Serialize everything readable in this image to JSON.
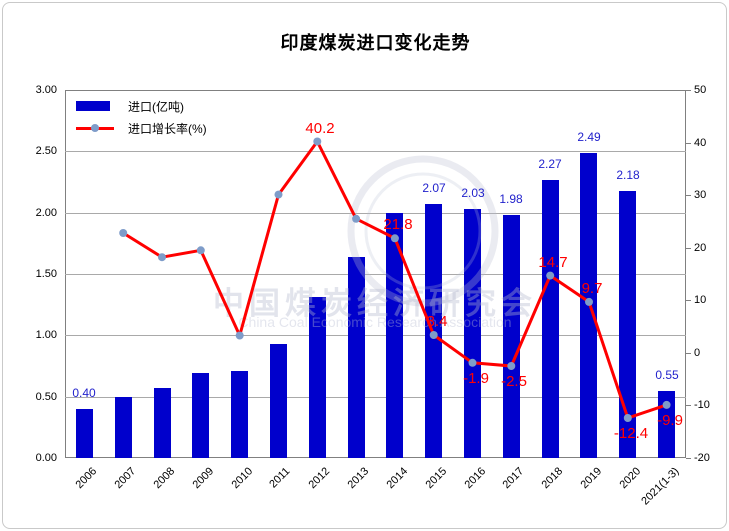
{
  "title": "印度煤炭进口变化走势",
  "legend": {
    "bar_label": "进口(亿吨)",
    "line_label": "进口增长率(%)"
  },
  "watermark": {
    "cn": "中国煤炭经济研究会",
    "en": "China Coal Economic Research Association"
  },
  "colors": {
    "bar": "#0000cc",
    "bar_label": "#2222cc",
    "line": "#ff0000",
    "line_label": "#ff0000",
    "marker": "#7e9cc9",
    "grid": "#a9a9a9",
    "plot_border": "#808080"
  },
  "chart_data": {
    "type": "bar",
    "subtype": "bar+line combo, secondary right axis",
    "title": "印度煤炭进口变化走势",
    "categories": [
      "2006",
      "2007",
      "2008",
      "2009",
      "2010",
      "2011",
      "2012",
      "2013",
      "2014",
      "2015",
      "2016",
      "2017",
      "2018",
      "2019",
      "2020",
      "2021(1-3)"
    ],
    "series": [
      {
        "name": "进口(亿吨)",
        "type": "bar",
        "axis": "left",
        "values": [
          0.4,
          0.5,
          0.57,
          0.69,
          0.71,
          0.93,
          1.31,
          1.64,
          2.0,
          2.07,
          2.03,
          1.98,
          2.27,
          2.49,
          2.18,
          0.55
        ],
        "shown_labels": [
          "0.40",
          null,
          null,
          null,
          null,
          null,
          null,
          null,
          null,
          "2.07",
          "2.03",
          "1.98",
          "2.27",
          "2.49",
          "2.18",
          "0.55"
        ]
      },
      {
        "name": "进口增长率(%)",
        "type": "line",
        "axis": "right",
        "values": [
          null,
          22.8,
          18.2,
          19.5,
          3.3,
          30.1,
          40.2,
          25.5,
          21.8,
          3.4,
          -1.9,
          -2.5,
          14.7,
          9.7,
          -12.4,
          -9.9
        ],
        "shown_labels": [
          null,
          null,
          null,
          null,
          null,
          null,
          "40.2",
          null,
          "21.8",
          "3.4",
          "-1.9",
          "-2.5",
          "14.7",
          "9.7",
          "-12.4",
          "-9.9"
        ]
      }
    ],
    "left_axis": {
      "min": 0,
      "max": 3,
      "step": 0.5,
      "ticks": [
        "0.00",
        "0.50",
        "1.00",
        "1.50",
        "2.00",
        "2.50",
        "3.00"
      ]
    },
    "right_axis": {
      "min": -20,
      "max": 50,
      "step": 10,
      "ticks": [
        "-20",
        "-10",
        "0",
        "10",
        "20",
        "30",
        "40",
        "50"
      ]
    },
    "grid": true,
    "legend_position": "top-left inside plot"
  }
}
